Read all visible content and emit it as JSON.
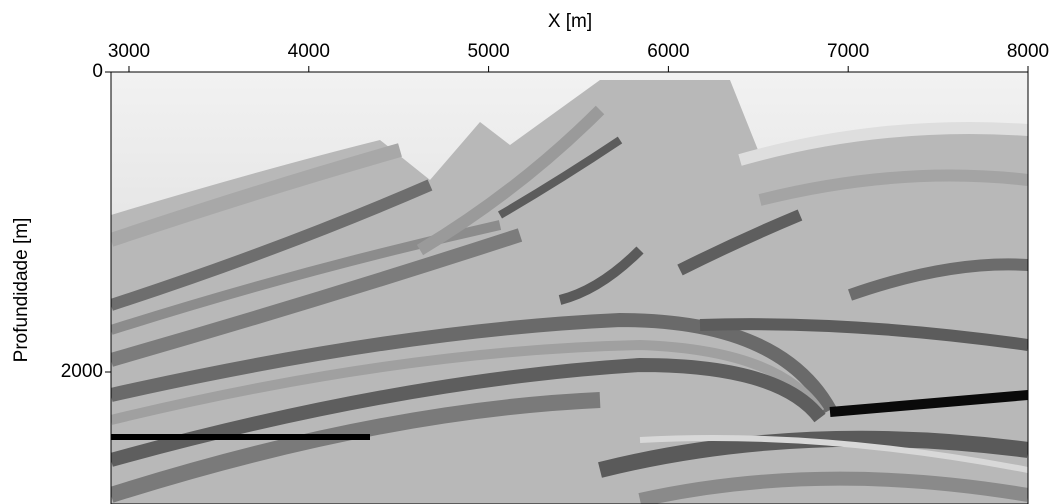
{
  "chart_data": {
    "type": "image",
    "xlabel": "X [m]",
    "ylabel": "Profundidade [m]",
    "xlim": [
      2900,
      8000
    ],
    "xticks": [
      3000,
      4000,
      5000,
      6000,
      7000,
      8000
    ],
    "ylim": [
      0,
      2880
    ],
    "yticks": [
      0,
      2000
    ]
  }
}
